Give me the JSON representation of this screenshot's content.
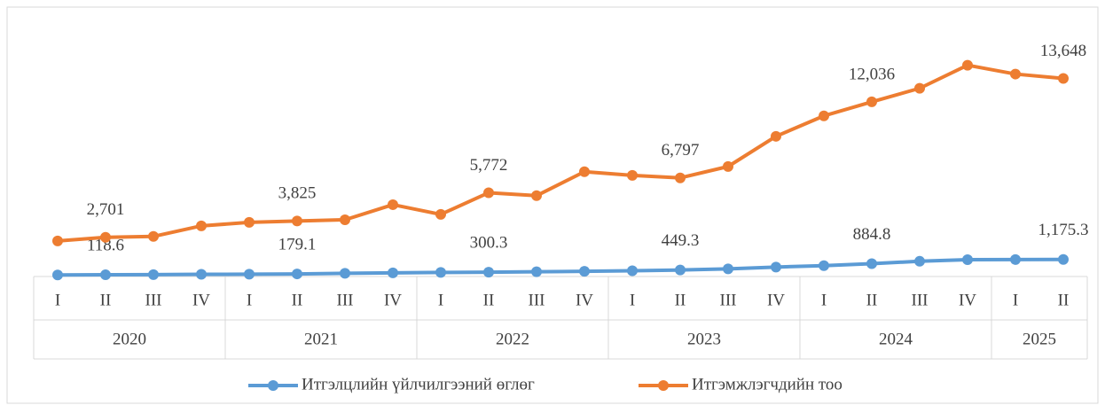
{
  "chart_data": {
    "type": "line",
    "groups": [
      {
        "name": "2020",
        "categories": [
          "I",
          "II",
          "III",
          "IV"
        ]
      },
      {
        "name": "2021",
        "categories": [
          "I",
          "II",
          "III",
          "IV"
        ]
      },
      {
        "name": "2022",
        "categories": [
          "I",
          "II",
          "III",
          "IV"
        ]
      },
      {
        "name": "2023",
        "categories": [
          "I",
          "II",
          "III",
          "IV"
        ]
      },
      {
        "name": "2024",
        "categories": [
          "I",
          "II",
          "III",
          "IV"
        ]
      },
      {
        "name": "2025",
        "categories": [
          "I",
          "II"
        ]
      }
    ],
    "ylim": [
      0,
      16000
    ],
    "legend": "bottom",
    "series": [
      {
        "name": "Итгэлцлийн үйлчилгээний өглөг",
        "color": "#5b9bd5",
        "values": [
          110,
          118.6,
          130,
          150,
          160,
          179.1,
          220,
          250,
          280,
          300.3,
          330,
          360,
          400,
          449.3,
          530,
          650,
          750,
          884.8,
          1050,
          1160,
          1170,
          1175.3
        ],
        "value_labels": [
          null,
          "118.6",
          null,
          null,
          null,
          "179.1",
          null,
          null,
          null,
          "300.3",
          null,
          null,
          null,
          "449.3",
          null,
          null,
          null,
          "884.8",
          null,
          null,
          null,
          "1,175.3"
        ]
      },
      {
        "name": "Итгэмжлэгчдийн тоо",
        "color": "#ed7d31",
        "values": [
          2450,
          2701,
          2760,
          3490,
          3730,
          3825,
          3910,
          4950,
          4280,
          5772,
          5570,
          7220,
          6970,
          6797,
          7580,
          9660,
          11070,
          12036,
          12970,
          14560,
          13950,
          13648
        ],
        "value_labels": [
          null,
          "2,701",
          null,
          null,
          null,
          "3,825",
          null,
          null,
          null,
          "5,772",
          null,
          null,
          null,
          "6,797",
          null,
          null,
          null,
          "12,036",
          null,
          null,
          null,
          "13,648"
        ]
      }
    ]
  }
}
